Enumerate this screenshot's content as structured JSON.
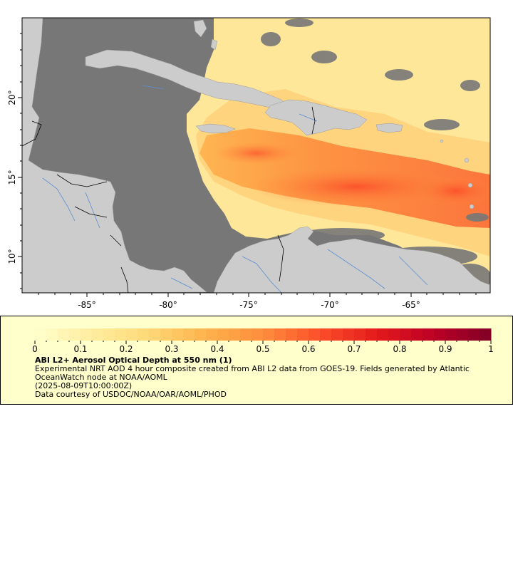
{
  "map": {
    "x_ticks": [
      "-85°",
      "-80°",
      "-75°",
      "-70°",
      "-65°"
    ],
    "y_ticks": [
      "20°",
      "15°",
      "10°"
    ],
    "colors": {
      "ocean": "#777777",
      "land": "#cccccc",
      "border": "#000000",
      "river": "#5b8fd1",
      "frame": "#000000"
    }
  },
  "legend": {
    "ticks": [
      "0",
      "0.1",
      "0.2",
      "0.3",
      "0.4",
      "0.5",
      "0.6",
      "0.7",
      "0.8",
      "0.9",
      "1"
    ],
    "range": [
      0,
      1
    ],
    "colors": [
      "#ffffcc",
      "#ffeda0",
      "#fed976",
      "#feb24c",
      "#fd8d3c",
      "#fc4e2a",
      "#e31a1c",
      "#bd0026",
      "#800026"
    ],
    "title": "ABI L2+ Aerosol Optical Depth at 550 nm (1)",
    "description": "Experimental NRT AOD 4 hour composite created from ABI L2 data from GOES-19. Fields generated by Atlantic OceanWatch node at NOAA/AOML",
    "timestamp": "(2025-08-09T10:00:00Z)",
    "credit": "Data courtesy of USDOC/NOAA/OAR/AOML/PHOD"
  }
}
